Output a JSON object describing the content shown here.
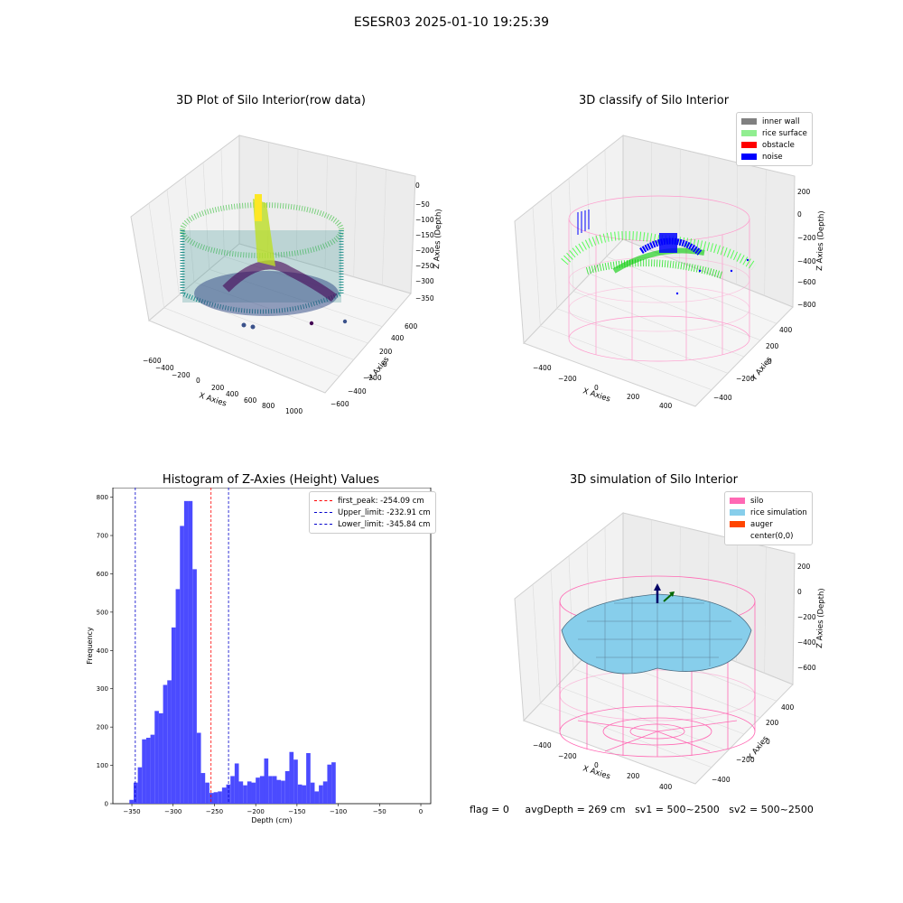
{
  "figure": {
    "suptitle": "ESESR03 2025-01-10 19:25:39",
    "footer": {
      "flag": "flag = 0",
      "avg_depth": "avgDepth = 269 cm",
      "sv1": "sv1 = 500~2500",
      "sv2": "sv2 = 500~2500"
    },
    "colors": {
      "hist_bar": "#4b4bff",
      "peak_line": "#ff0000",
      "limit_line": "#0000cc",
      "silo": "#ff69b4",
      "rice_simulation": "#87ceeb",
      "auger": "#ff4500",
      "inner_wall": "#808080",
      "rice_surface": "#90ee90",
      "obstacle": "#ff0000",
      "noise": "#0000ff"
    }
  },
  "chart_data": [
    {
      "type": "scatter",
      "projection": "3d",
      "title": "3D Plot of Silo Interior(row data)",
      "xlabel": "X Axies",
      "ylabel": "Y Axies",
      "zlabel": "Z Axies (Depth)",
      "x_ticks": [
        "−600",
        "−400",
        "−200",
        "0",
        "200",
        "400",
        "600",
        "800",
        "1000"
      ],
      "y_ticks": [
        "−600",
        "−400",
        "−200",
        "0",
        "200",
        "400",
        "600"
      ],
      "z_ticks": [
        "0",
        "−50",
        "−100",
        "−150",
        "−200",
        "−250",
        "−300",
        "−350"
      ],
      "colormap": "viridis",
      "grid": true
    },
    {
      "type": "scatter",
      "projection": "3d",
      "title": "3D classify of Silo Interior",
      "xlabel": "X Axies",
      "ylabel": "Y Axies",
      "zlabel": "Z Axies (Depth)",
      "x_ticks": [
        "−400",
        "−200",
        "0",
        "200",
        "400"
      ],
      "y_ticks": [
        "−400",
        "−200",
        "0",
        "200",
        "400"
      ],
      "z_ticks": [
        "200",
        "0",
        "−200",
        "−400",
        "−600",
        "−800"
      ],
      "legend_position": "top-right",
      "legend": [
        {
          "label": "inner wall",
          "color": "#808080"
        },
        {
          "label": "rice surface",
          "color": "#90ee90"
        },
        {
          "label": "obstacle",
          "color": "#ff0000"
        },
        {
          "label": "noise",
          "color": "#0000ff"
        }
      ],
      "grid": true
    },
    {
      "type": "bar",
      "title": "Histogram of Z-Axies (Height) Values",
      "xlabel": "Depth (cm)",
      "ylabel": "Frequency",
      "xlim": [
        -373,
        12
      ],
      "ylim": [
        0,
        825
      ],
      "x_ticks": [
        -350,
        -300,
        -250,
        -200,
        -150,
        -100,
        -50,
        0
      ],
      "x_tick_labels": [
        "−350",
        "−300",
        "−250",
        "−200",
        "−150",
        "−100",
        "−50",
        "0"
      ],
      "y_ticks": [
        0,
        100,
        200,
        300,
        400,
        500,
        600,
        700,
        800
      ],
      "bin_start": -353.0,
      "bin_width": 5.1,
      "values": [
        10,
        55,
        95,
        168,
        172,
        180,
        242,
        236,
        310,
        322,
        460,
        560,
        725,
        790,
        790,
        612,
        185,
        80,
        55,
        28,
        30,
        32,
        42,
        50,
        72,
        105,
        58,
        48,
        58,
        55,
        68,
        72,
        118,
        72,
        72,
        62,
        60,
        85,
        135,
        115,
        50,
        48,
        132,
        55,
        32,
        48,
        58,
        102,
        108
      ],
      "vlines": [
        {
          "label": "first_peak: -254.09 cm",
          "x": -254.09,
          "color": "#ff0000"
        },
        {
          "label": "Upper_limit: -232.91 cm",
          "x": -232.91,
          "color": "#0000cc"
        },
        {
          "label": "Lower_limit: -345.84 cm",
          "x": -345.84,
          "color": "#0000cc"
        }
      ],
      "legend_position": "top-right"
    },
    {
      "type": "surface",
      "projection": "3d",
      "title": "3D simulation of Silo Interior",
      "xlabel": "X Axies",
      "ylabel": "Y Axies",
      "zlabel": "Z Axies (Depth)",
      "x_ticks": [
        "−400",
        "−200",
        "0",
        "200",
        "400"
      ],
      "y_ticks": [
        "−400",
        "−200",
        "0",
        "200",
        "400"
      ],
      "z_ticks": [
        "200",
        "0",
        "−200",
        "−400",
        "−600"
      ],
      "legend_position": "top-right",
      "legend": [
        {
          "label": "silo",
          "color": "#ff69b4"
        },
        {
          "label": "rice simulation",
          "color": "#87ceeb"
        },
        {
          "label": "auger",
          "color": "#ff4500"
        },
        {
          "label": "center(0,0)",
          "color": "#ffffff"
        }
      ],
      "grid": true
    }
  ]
}
